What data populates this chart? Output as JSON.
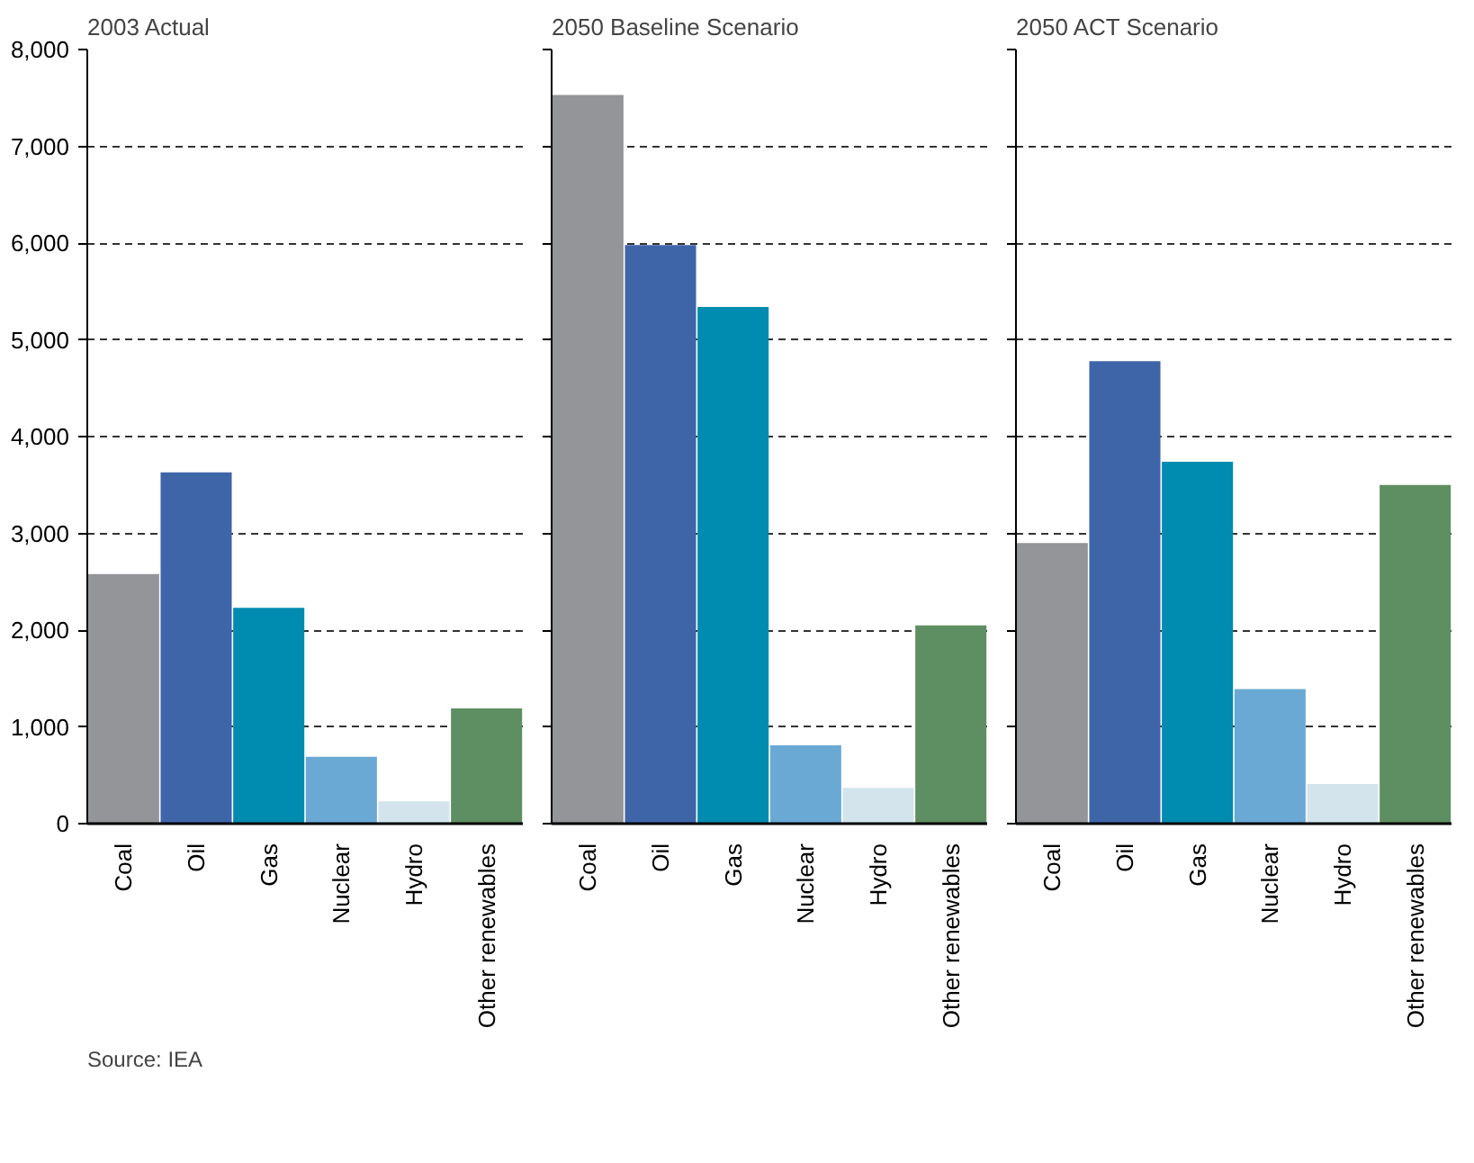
{
  "chart_data": [
    {
      "type": "bar",
      "title": "2003 Actual",
      "categories": [
        "Coal",
        "Oil",
        "Gas",
        "Nuclear",
        "Hydro",
        "Other renewables"
      ],
      "values": [
        2580,
        3630,
        2230,
        690,
        230,
        1190
      ],
      "colors": [
        "#939598",
        "#3f65a9",
        "#008bb0",
        "#6aa9d4",
        "#d3e4ec",
        "#5e8f62"
      ],
      "ylim": [
        0,
        8000
      ],
      "yticks": [
        {
          "value": 0,
          "label": "0"
        },
        {
          "value": 1000,
          "label": "1,000"
        },
        {
          "value": 2000,
          "label": "2,000"
        },
        {
          "value": 3000,
          "label": "3,000"
        },
        {
          "value": 4000,
          "label": "4,000"
        },
        {
          "value": 5000,
          "label": "5,000"
        },
        {
          "value": 6000,
          "label": "6,000"
        },
        {
          "value": 7000,
          "label": "7,000"
        },
        {
          "value": 8000,
          "label": "8,000"
        }
      ],
      "grid": "y",
      "annotations": [
        "Source: IEA"
      ]
    },
    {
      "type": "bar",
      "title": "2050 Baseline Scenario",
      "categories": [
        "Coal",
        "Oil",
        "Gas",
        "Nuclear",
        "Hydro",
        "Other renewables"
      ],
      "values": [
        7530,
        5980,
        5340,
        810,
        370,
        2050
      ],
      "colors": [
        "#939598",
        "#3f65a9",
        "#008bb0",
        "#6aa9d4",
        "#d3e4ec",
        "#5e8f62"
      ],
      "ylim": [
        0,
        8000
      ],
      "yticks": [
        0,
        1000,
        2000,
        3000,
        4000,
        5000,
        6000,
        7000,
        8000
      ],
      "grid": "y",
      "tick_labels": "x"
    },
    {
      "type": "bar",
      "title": "2050 ACT Scenario",
      "categories": [
        "Coal",
        "Oil",
        "Gas",
        "Nuclear",
        "Hydro",
        "Other renewables"
      ],
      "values": [
        2900,
        4780,
        3740,
        1390,
        410,
        3500
      ],
      "colors": [
        "#939598",
        "#3f65a9",
        "#008bb0",
        "#6aa9d4",
        "#d3e4ec",
        "#5e8f62"
      ],
      "ylim": [
        0,
        8000
      ],
      "yticks": [
        0,
        1000,
        2000,
        3000,
        4000,
        5000,
        6000,
        7000,
        8000
      ],
      "grid": "y",
      "tick_labels": "x"
    }
  ]
}
